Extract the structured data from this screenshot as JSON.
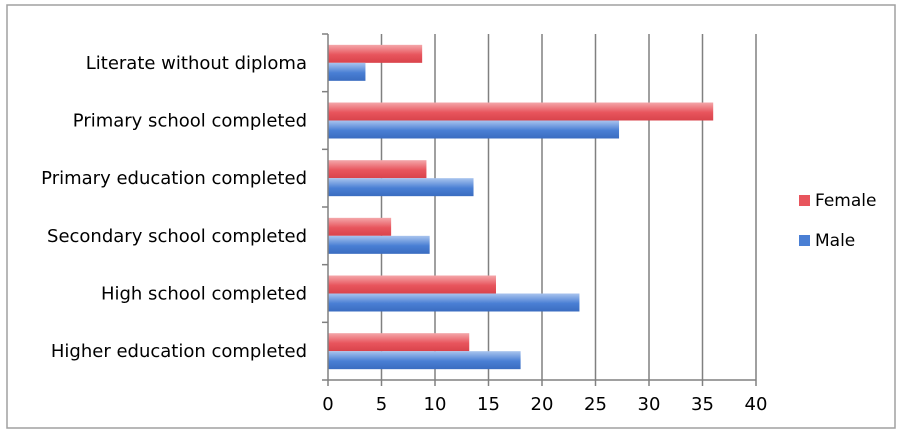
{
  "chart_data": {
    "type": "bar",
    "orientation": "horizontal",
    "title": "",
    "xlabel": "",
    "ylabel": "",
    "categories": [
      "Literate without diploma",
      "Primary school completed",
      "Primary education completed",
      "Secondary school completed",
      "High school completed",
      "Higher education completed"
    ],
    "series": [
      {
        "name": "Female",
        "color": "#e8555d",
        "values": [
          8.8,
          36.0,
          9.2,
          5.9,
          15.7,
          13.2
        ]
      },
      {
        "name": "Male",
        "color": "#4a7fd4",
        "values": [
          3.5,
          27.2,
          13.6,
          9.5,
          23.5,
          18.0
        ]
      }
    ],
    "xlim": [
      0,
      40
    ],
    "xticks": [
      "0",
      "5",
      "10",
      "15",
      "20",
      "25",
      "30",
      "35",
      "40"
    ],
    "grid": "vertical",
    "legend_position": "right"
  }
}
